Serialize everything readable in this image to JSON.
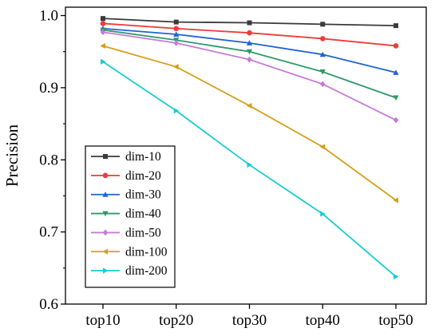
{
  "chart_data": {
    "type": "line",
    "categories": [
      "top10",
      "top20",
      "top30",
      "top40",
      "top50"
    ],
    "ylabel": "Precision",
    "xlabel": "",
    "ylim": [
      0.6,
      1.0
    ],
    "yticks": [
      "0.6",
      "0.7",
      "0.8",
      "0.9",
      "1.0"
    ],
    "legend_position": "bottom-left",
    "series": [
      {
        "name": "dim-10",
        "color": "#3a3a3a",
        "marker": "square",
        "values": [
          0.996,
          0.991,
          0.99,
          0.988,
          0.986
        ]
      },
      {
        "name": "dim-20",
        "color": "#ee3b3b",
        "marker": "circle",
        "values": [
          0.989,
          0.982,
          0.976,
          0.968,
          0.958
        ]
      },
      {
        "name": "dim-30",
        "color": "#1e64d2",
        "marker": "triangle-up",
        "values": [
          0.982,
          0.974,
          0.962,
          0.946,
          0.921
        ]
      },
      {
        "name": "dim-40",
        "color": "#2e9a6a",
        "marker": "triangle-down",
        "values": [
          0.98,
          0.966,
          0.95,
          0.922,
          0.886
        ]
      },
      {
        "name": "dim-50",
        "color": "#c77ad9",
        "marker": "diamond",
        "values": [
          0.977,
          0.962,
          0.939,
          0.905,
          0.855
        ]
      },
      {
        "name": "dim-100",
        "color": "#d4a017",
        "marker": "triangle-left",
        "values": [
          0.958,
          0.929,
          0.875,
          0.818,
          0.744
        ]
      },
      {
        "name": "dim-200",
        "color": "#17ccd4",
        "marker": "triangle-right",
        "values": [
          0.936,
          0.868,
          0.793,
          0.725,
          0.638
        ]
      }
    ]
  }
}
